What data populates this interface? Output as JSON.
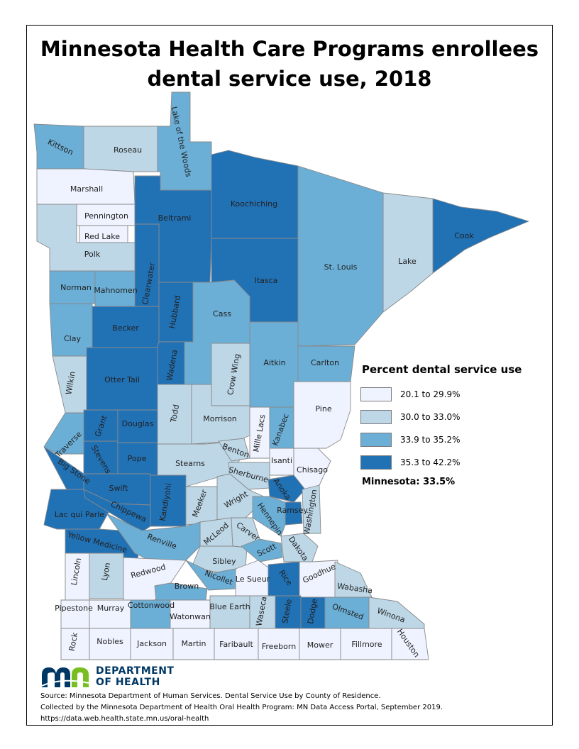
{
  "title": {
    "line1": "Minnesota Health Care Programs enrollees",
    "line2": "dental service use, 2018"
  },
  "legend": {
    "title": "Percent dental service use",
    "classes": [
      {
        "label": "20.1 to 29.9%",
        "color": "#eff3ff"
      },
      {
        "label": "30.0 to 33.0%",
        "color": "#bdd7e7"
      },
      {
        "label": "33.9 to 35.2%",
        "color": "#6baed6"
      },
      {
        "label": "35.3 to 42.2%",
        "color": "#2171b5"
      }
    ],
    "state_average": "Minnesota: 33.5%"
  },
  "logo": {
    "line1": "DEPARTMENT",
    "line2": "OF HEALTH",
    "icon": "mn-department-of-health-logo"
  },
  "source": {
    "line1": "Source: Minnesota Department of Human Services.  Dental Service Use by County of Residence.",
    "line2": "Collected by the Minnesota Department of Health Oral Health Program: MN Data Access Portal, September 2019.",
    "line3": "https://data.web.health.state.mn.us/oral-health"
  },
  "counties": [
    {
      "name": "Kittson",
      "class": 2
    },
    {
      "name": "Roseau",
      "class": 1
    },
    {
      "name": "Lake of the Woods",
      "class": 2
    },
    {
      "name": "Marshall",
      "class": 0
    },
    {
      "name": "Pennington",
      "class": 0
    },
    {
      "name": "Red Lake",
      "class": 0
    },
    {
      "name": "Polk",
      "class": 1
    },
    {
      "name": "Beltrami",
      "class": 3
    },
    {
      "name": "Koochiching",
      "class": 3
    },
    {
      "name": "Cook",
      "class": 3
    },
    {
      "name": "Lake",
      "class": 1
    },
    {
      "name": "St. Louis",
      "class": 2
    },
    {
      "name": "Itasca",
      "class": 3
    },
    {
      "name": "Clearwater",
      "class": 3
    },
    {
      "name": "Norman",
      "class": 2
    },
    {
      "name": "Mahnomen",
      "class": 2
    },
    {
      "name": "Hubbard",
      "class": 3
    },
    {
      "name": "Cass",
      "class": 2
    },
    {
      "name": "Clay",
      "class": 2
    },
    {
      "name": "Becker",
      "class": 3
    },
    {
      "name": "Wadena",
      "class": 3
    },
    {
      "name": "Crow Wing",
      "class": 1
    },
    {
      "name": "Aitkin",
      "class": 2
    },
    {
      "name": "Carlton",
      "class": 2
    },
    {
      "name": "Wilkin",
      "class": 1
    },
    {
      "name": "Otter Tail",
      "class": 3
    },
    {
      "name": "Todd",
      "class": 1
    },
    {
      "name": "Morrison",
      "class": 1
    },
    {
      "name": "Mille Lacs",
      "class": 0
    },
    {
      "name": "Kanabec",
      "class": 2
    },
    {
      "name": "Pine",
      "class": 0
    },
    {
      "name": "Grant",
      "class": 3
    },
    {
      "name": "Douglas",
      "class": 3
    },
    {
      "name": "Traverse",
      "class": 2
    },
    {
      "name": "Stevens",
      "class": 3
    },
    {
      "name": "Pope",
      "class": 3
    },
    {
      "name": "Stearns",
      "class": 1
    },
    {
      "name": "Benton",
      "class": 1
    },
    {
      "name": "Isanti",
      "class": 0
    },
    {
      "name": "Chisago",
      "class": 0
    },
    {
      "name": "Sherburne",
      "class": 1
    },
    {
      "name": "Big Stone",
      "class": 3
    },
    {
      "name": "Swift",
      "class": 3
    },
    {
      "name": "Kandiyohi",
      "class": 3
    },
    {
      "name": "Meeker",
      "class": 1
    },
    {
      "name": "Wright",
      "class": 1
    },
    {
      "name": "Anoka",
      "class": 3
    },
    {
      "name": "Ramsey",
      "class": 3
    },
    {
      "name": "Washington",
      "class": 1
    },
    {
      "name": "Hennepin",
      "class": 2
    },
    {
      "name": "Lac qui Parle",
      "class": 3
    },
    {
      "name": "Chippewa",
      "class": 3
    },
    {
      "name": "McLeod",
      "class": 1
    },
    {
      "name": "Carver",
      "class": 1
    },
    {
      "name": "Yellow Medicine",
      "class": 3
    },
    {
      "name": "Renville",
      "class": 2
    },
    {
      "name": "Sibley",
      "class": 1
    },
    {
      "name": "Scott",
      "class": 2
    },
    {
      "name": "Dakota",
      "class": 1
    },
    {
      "name": "Lincoln",
      "class": 0
    },
    {
      "name": "Lyon",
      "class": 1
    },
    {
      "name": "Redwood",
      "class": 0
    },
    {
      "name": "Brown",
      "class": 2
    },
    {
      "name": "Nicollet",
      "class": 2
    },
    {
      "name": "Le Sueur",
      "class": 0
    },
    {
      "name": "Rice",
      "class": 3
    },
    {
      "name": "Goodhue",
      "class": 0
    },
    {
      "name": "Wabasha",
      "class": 1
    },
    {
      "name": "Pipestone",
      "class": 0
    },
    {
      "name": "Murray",
      "class": 0
    },
    {
      "name": "Cottonwood",
      "class": 2
    },
    {
      "name": "Watonwan",
      "class": 0
    },
    {
      "name": "Blue Earth",
      "class": 1
    },
    {
      "name": "Waseca",
      "class": 1
    },
    {
      "name": "Steele",
      "class": 3
    },
    {
      "name": "Dodge",
      "class": 3
    },
    {
      "name": "Olmsted",
      "class": 2
    },
    {
      "name": "Winona",
      "class": 1
    },
    {
      "name": "Rock",
      "class": 0
    },
    {
      "name": "Nobles",
      "class": 0
    },
    {
      "name": "Jackson",
      "class": 0
    },
    {
      "name": "Martin",
      "class": 0
    },
    {
      "name": "Faribault",
      "class": 0
    },
    {
      "name": "Freeborn",
      "class": 0
    },
    {
      "name": "Mower",
      "class": 0
    },
    {
      "name": "Fillmore",
      "class": 0
    },
    {
      "name": "Houston",
      "class": 0
    }
  ]
}
